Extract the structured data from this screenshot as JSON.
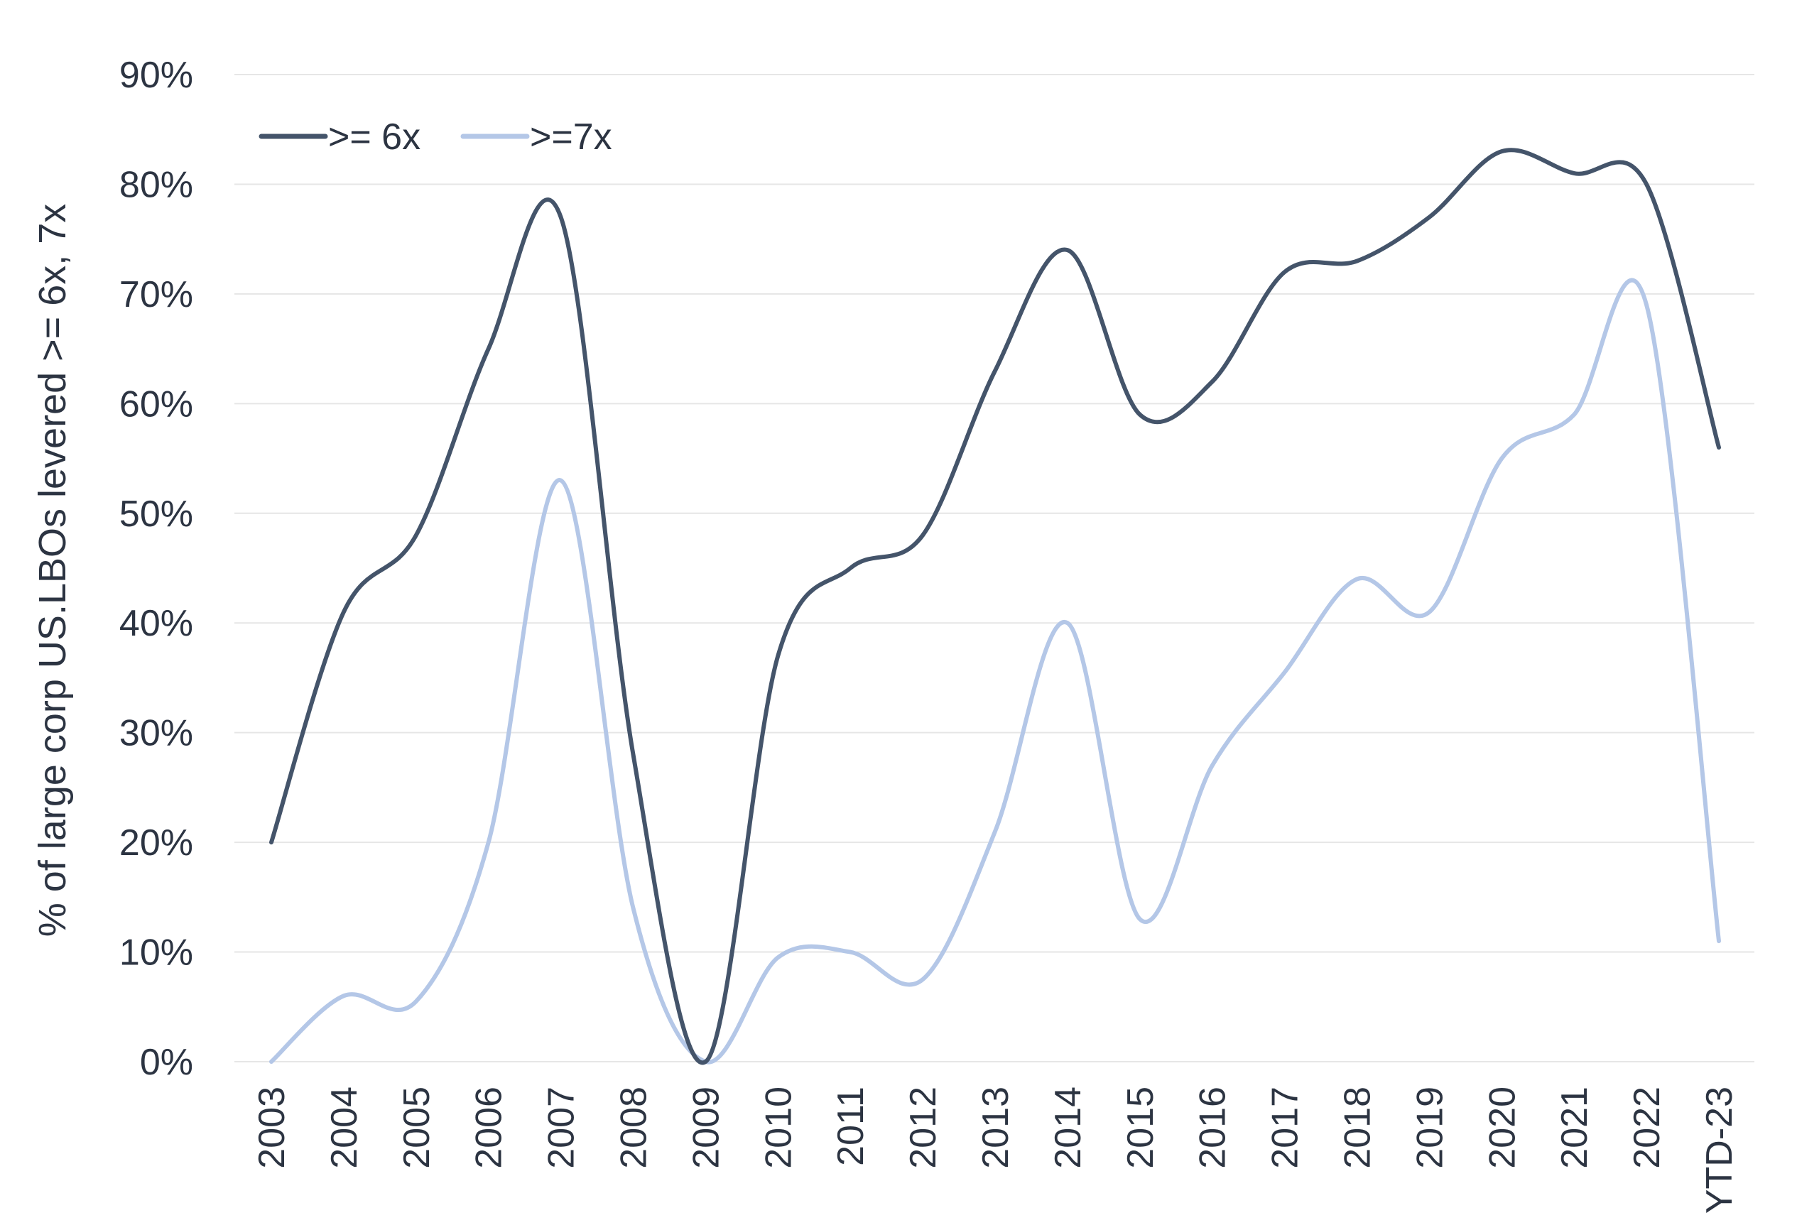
{
  "chart_data": {
    "type": "line",
    "title": "",
    "xlabel": "",
    "ylabel": "% of large corp US.LBOs levered >= 6x, 7x",
    "categories": [
      "2003",
      "2004",
      "2005",
      "2006",
      "2007",
      "2008",
      "2009",
      "2010",
      "2011",
      "2012",
      "2013",
      "2014",
      "2015",
      "2016",
      "2017",
      "2018",
      "2019",
      "2020",
      "2021",
      "2022",
      "YTD-23"
    ],
    "ylim": [
      0,
      90
    ],
    "yticks": [
      0,
      10,
      20,
      30,
      40,
      50,
      60,
      70,
      80,
      90
    ],
    "ytick_labels": [
      "0%",
      "10%",
      "20%",
      "30%",
      "40%",
      "50%",
      "60%",
      "70%",
      "80%",
      "90%"
    ],
    "grid": true,
    "legend_position": "top-left",
    "smooth": true,
    "series": [
      {
        "name": ">= 6x",
        "color": "#44546a",
        "values": [
          20,
          41,
          48,
          65,
          77,
          28,
          0,
          37,
          45,
          48,
          63,
          74,
          59,
          62,
          72,
          73,
          77,
          83,
          81,
          80,
          56
        ]
      },
      {
        "name": ">=7x",
        "color": "#b4c7e7",
        "values": [
          0,
          6,
          5.5,
          20,
          53,
          14,
          0,
          9.5,
          10,
          7.5,
          21,
          40,
          13,
          27,
          35.5,
          44,
          41,
          55,
          59,
          69,
          11
        ]
      }
    ]
  }
}
